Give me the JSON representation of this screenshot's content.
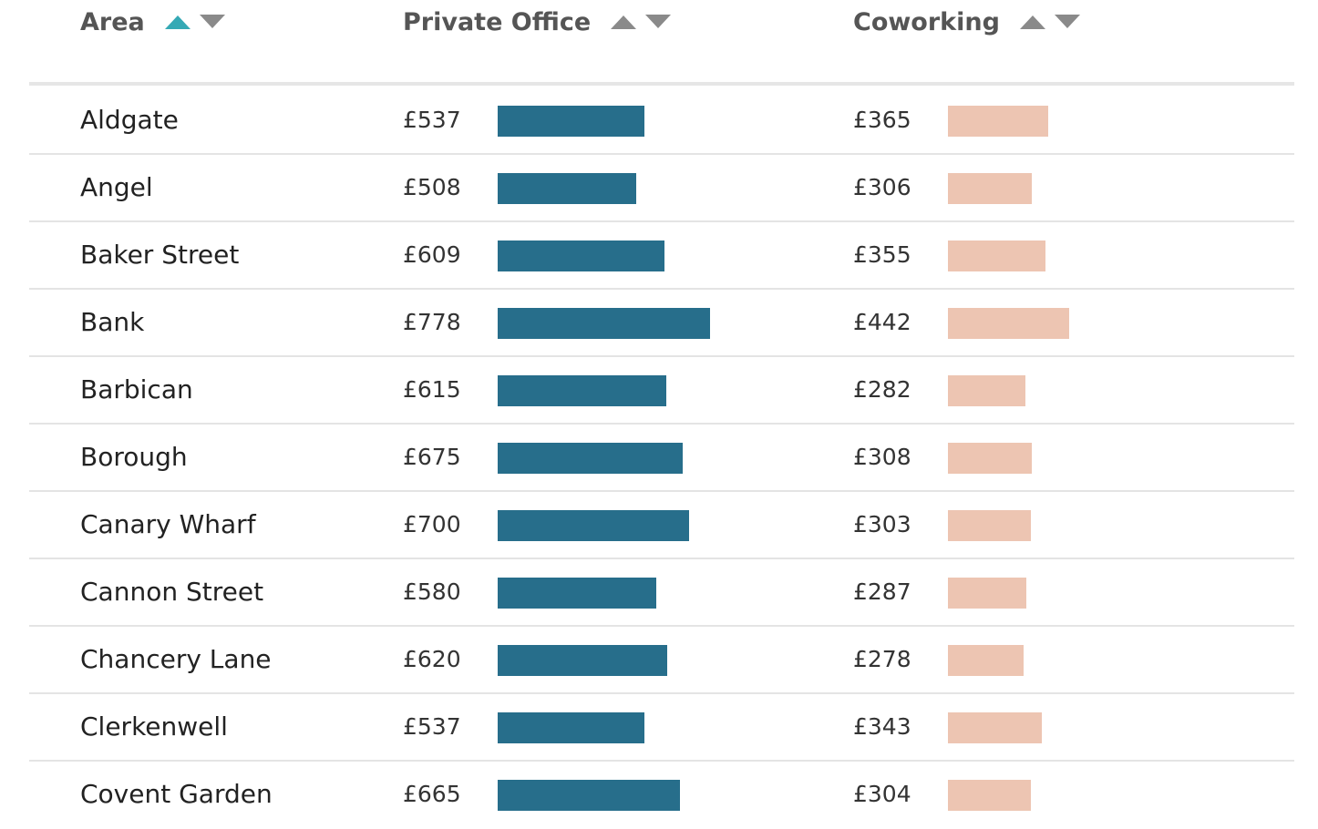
{
  "chart_data": {
    "type": "table",
    "columns": [
      {
        "key": "area",
        "label": "Area",
        "sort": "asc"
      },
      {
        "key": "private_office",
        "label": "Private Office",
        "sort": "none"
      },
      {
        "key": "coworking",
        "label": "Coworking",
        "sort": "none"
      }
    ],
    "rows": [
      {
        "area": "Aldgate",
        "private_office": 537,
        "coworking": 365
      },
      {
        "area": "Angel",
        "private_office": 508,
        "coworking": 306
      },
      {
        "area": "Baker Street",
        "private_office": 609,
        "coworking": 355
      },
      {
        "area": "Bank",
        "private_office": 778,
        "coworking": 442
      },
      {
        "area": "Barbican",
        "private_office": 615,
        "coworking": 282
      },
      {
        "area": "Borough",
        "private_office": 675,
        "coworking": 308
      },
      {
        "area": "Canary Wharf",
        "private_office": 700,
        "coworking": 303
      },
      {
        "area": "Cannon Street",
        "private_office": 580,
        "coworking": 287
      },
      {
        "area": "Chancery Lane",
        "private_office": 620,
        "coworking": 278
      },
      {
        "area": "Clerkenwell",
        "private_office": 537,
        "coworking": 343
      },
      {
        "area": "Covent Garden",
        "private_office": 665,
        "coworking": 304
      }
    ],
    "currency": "£"
  },
  "colors": {
    "private_office_bar": "#276e8b",
    "coworking_bar": "#edc5b2",
    "sort_active": "#35a9b5",
    "sort_inactive": "#8a8a8a"
  }
}
